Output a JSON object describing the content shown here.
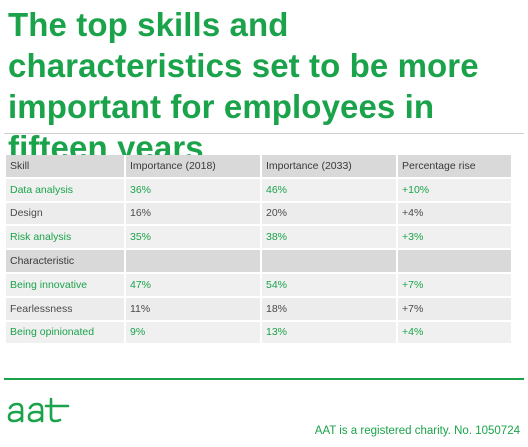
{
  "title": "The top skills and characteristics set to be more important for employees in fifteen years",
  "chart_data": {
    "type": "table",
    "columns": [
      "Skill",
      "Importance (2018)",
      "Importance (2033)",
      "Percentage rise"
    ],
    "skill_rows": [
      {
        "label": "Data analysis",
        "v2018": "36%",
        "v2033": "46%",
        "rise": "+10%"
      },
      {
        "label": "Design",
        "v2018": "16%",
        "v2033": "20%",
        "rise": "+4%"
      },
      {
        "label": "Risk analysis",
        "v2018": "35%",
        "v2033": "38%",
        "rise": "+3%"
      }
    ],
    "section_header": "Characteristic",
    "characteristic_rows": [
      {
        "label": "Being innovative",
        "v2018": "47%",
        "v2033": "54%",
        "rise": "+7%"
      },
      {
        "label": "Fearlessness",
        "v2018": "11%",
        "v2033": "18%",
        "rise": "+7%"
      },
      {
        "label": "Being opinionated",
        "v2018": "9%",
        "v2033": "13%",
        "rise": "+4%"
      }
    ]
  },
  "logo_text": "aat",
  "footer": "AAT is a registered charity. No. 1050724",
  "colors": {
    "accent": "#1aa34a",
    "header_bg": "#d9d9d9",
    "row_bg": "#f0f0f0"
  }
}
